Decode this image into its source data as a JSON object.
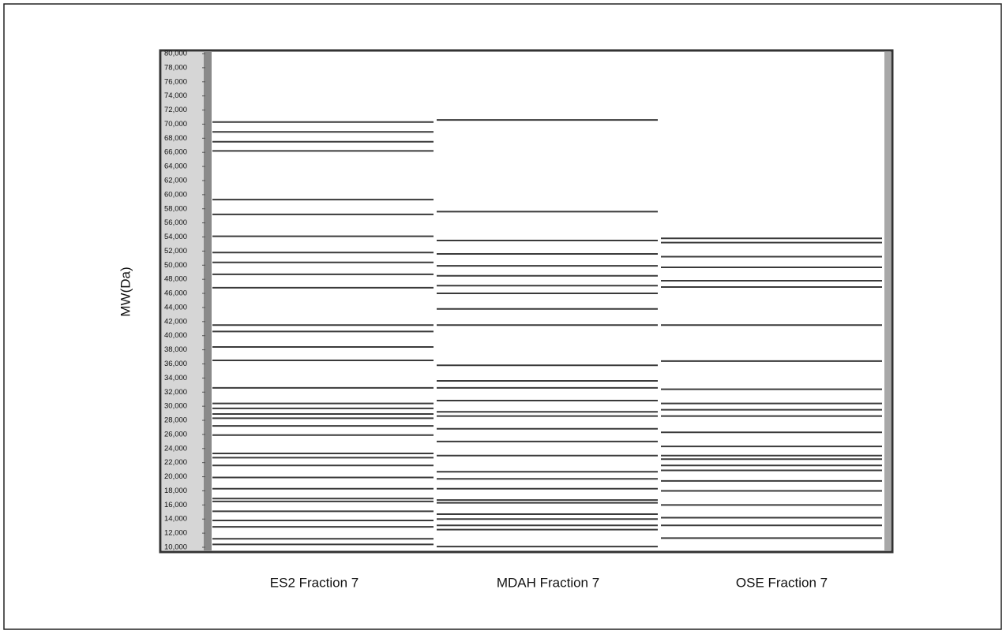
{
  "chart_data": {
    "type": "gel",
    "y_label": "MW(Da)",
    "ylim": [
      10000,
      80000
    ],
    "yticks": [
      {
        "value": 10000,
        "label": "10,000"
      },
      {
        "value": 12000,
        "label": "12,000"
      },
      {
        "value": 14000,
        "label": "14,000"
      },
      {
        "value": 16000,
        "label": "16,000"
      },
      {
        "value": 18000,
        "label": "18,000"
      },
      {
        "value": 20000,
        "label": "20,000"
      },
      {
        "value": 22000,
        "label": "22,000"
      },
      {
        "value": 24000,
        "label": "24,000"
      },
      {
        "value": 26000,
        "label": "26,000"
      },
      {
        "value": 28000,
        "label": "28,000"
      },
      {
        "value": 30000,
        "label": "30,000"
      },
      {
        "value": 32000,
        "label": "32,000"
      },
      {
        "value": 34000,
        "label": "34,000"
      },
      {
        "value": 36000,
        "label": "36,000"
      },
      {
        "value": 38000,
        "label": "38,000"
      },
      {
        "value": 40000,
        "label": "40,000"
      },
      {
        "value": 42000,
        "label": "42,000"
      },
      {
        "value": 44000,
        "label": "44,000"
      },
      {
        "value": 46000,
        "label": "46,000"
      },
      {
        "value": 48000,
        "label": "48,000"
      },
      {
        "value": 50000,
        "label": "50,000"
      },
      {
        "value": 52000,
        "label": "52,000"
      },
      {
        "value": 54000,
        "label": "54,000"
      },
      {
        "value": 56000,
        "label": "56,000"
      },
      {
        "value": 58000,
        "label": "58,000"
      },
      {
        "value": 60000,
        "label": "60,000"
      },
      {
        "value": 62000,
        "label": "62,000"
      },
      {
        "value": 64000,
        "label": "64,000"
      },
      {
        "value": 66000,
        "label": "66,000"
      },
      {
        "value": 68000,
        "label": "68,000"
      },
      {
        "value": 70000,
        "label": "70,000"
      },
      {
        "value": 72000,
        "label": "72,000"
      },
      {
        "value": 74000,
        "label": "74,000"
      },
      {
        "value": 76000,
        "label": "76,000"
      },
      {
        "value": 78000,
        "label": "78,000"
      },
      {
        "value": 80000,
        "label": "80,000"
      }
    ],
    "series": [
      {
        "name": "ES2 Fraction 7",
        "color": "#3a3a3a",
        "values": [
          70300,
          68900,
          67500,
          66200,
          59300,
          57200,
          54100,
          51800,
          50400,
          48700,
          46800,
          41500,
          40600,
          38400,
          36500,
          32600,
          30400,
          29700,
          28900,
          28300,
          27200,
          25900,
          23300,
          22700,
          21600,
          19900,
          18300,
          16900,
          16500,
          15100,
          13800,
          12900,
          11200,
          10400
        ]
      },
      {
        "name": "MDAH Fraction 7",
        "color": "#3a3a3a",
        "values": [
          70600,
          57600,
          53500,
          51600,
          49900,
          48500,
          47100,
          46000,
          43800,
          41500,
          35800,
          33600,
          32600,
          30800,
          29200,
          28600,
          26800,
          25000,
          23000,
          20700,
          19700,
          18300,
          16700,
          16300,
          14700,
          14000,
          13100,
          12500,
          10100
        ]
      },
      {
        "name": "OSE Fraction 7",
        "color": "#3a3a3a",
        "values": [
          53800,
          53200,
          51200,
          49700,
          47800,
          46900,
          41500,
          36400,
          32400,
          30400,
          29500,
          28600,
          26300,
          24300,
          23000,
          22500,
          21600,
          20900,
          19400,
          18000,
          16000,
          14200,
          13100,
          11300
        ]
      }
    ]
  }
}
